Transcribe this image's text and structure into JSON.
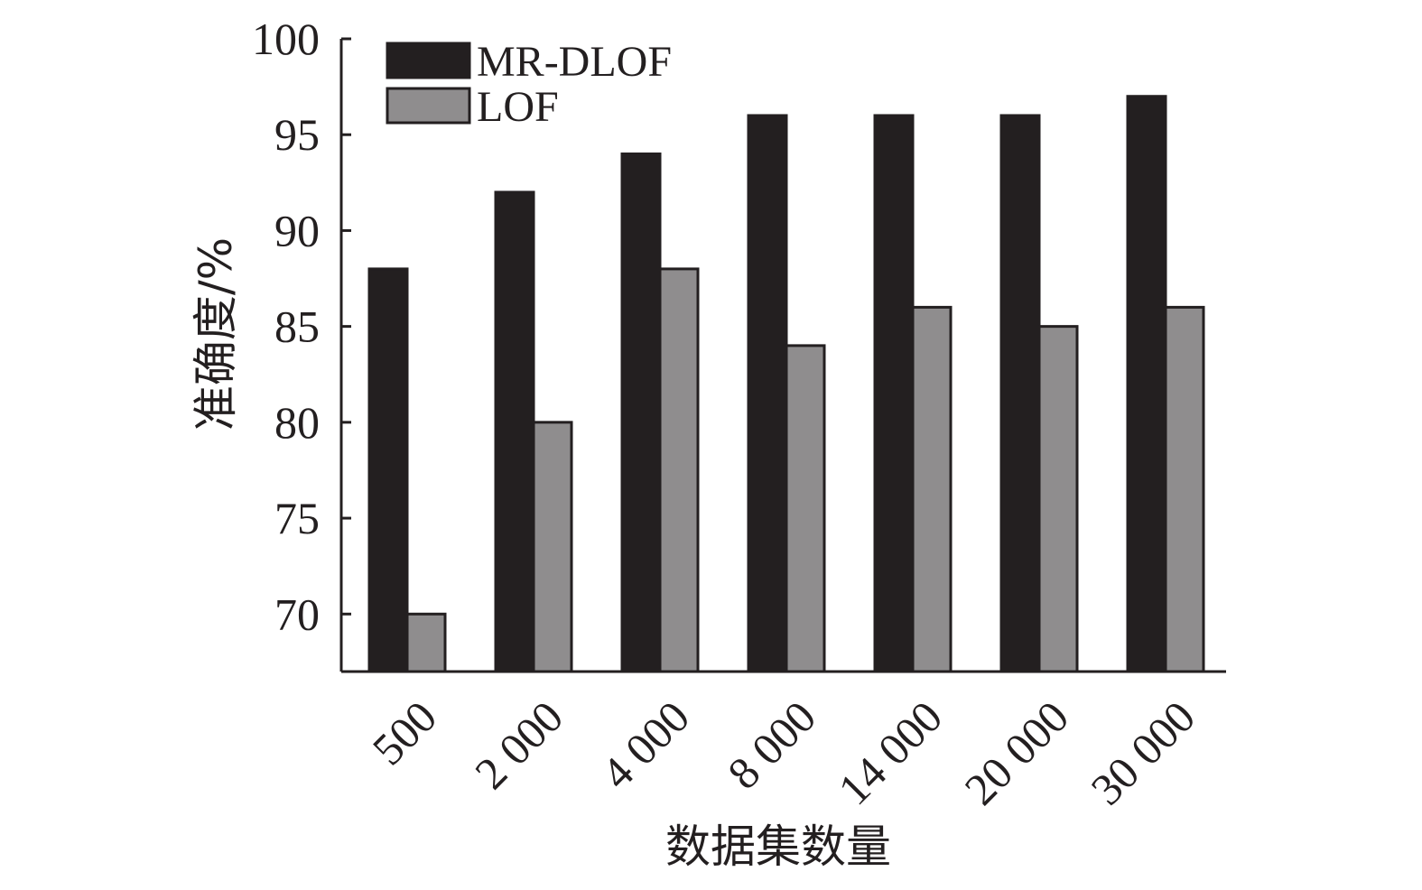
{
  "chart_data": {
    "type": "bar",
    "title": "",
    "xlabel": "数据集数量",
    "ylabel": "准确度/%",
    "categories": [
      "500",
      "2 000",
      "4 000",
      "8 000",
      "14 000",
      "20 000",
      "30 000"
    ],
    "series": [
      {
        "name": "MR-DLOF",
        "color": "#231f20",
        "values": [
          88,
          92,
          94,
          96,
          96,
          96,
          97
        ]
      },
      {
        "name": "LOF",
        "color": "#8f8d8e",
        "values": [
          70,
          80,
          88,
          84,
          86,
          85,
          86
        ]
      }
    ],
    "ylim": [
      67,
      100
    ],
    "yticks": [
      70,
      75,
      80,
      85,
      90,
      95,
      100
    ],
    "grid": false,
    "legend_position": "top-left"
  }
}
